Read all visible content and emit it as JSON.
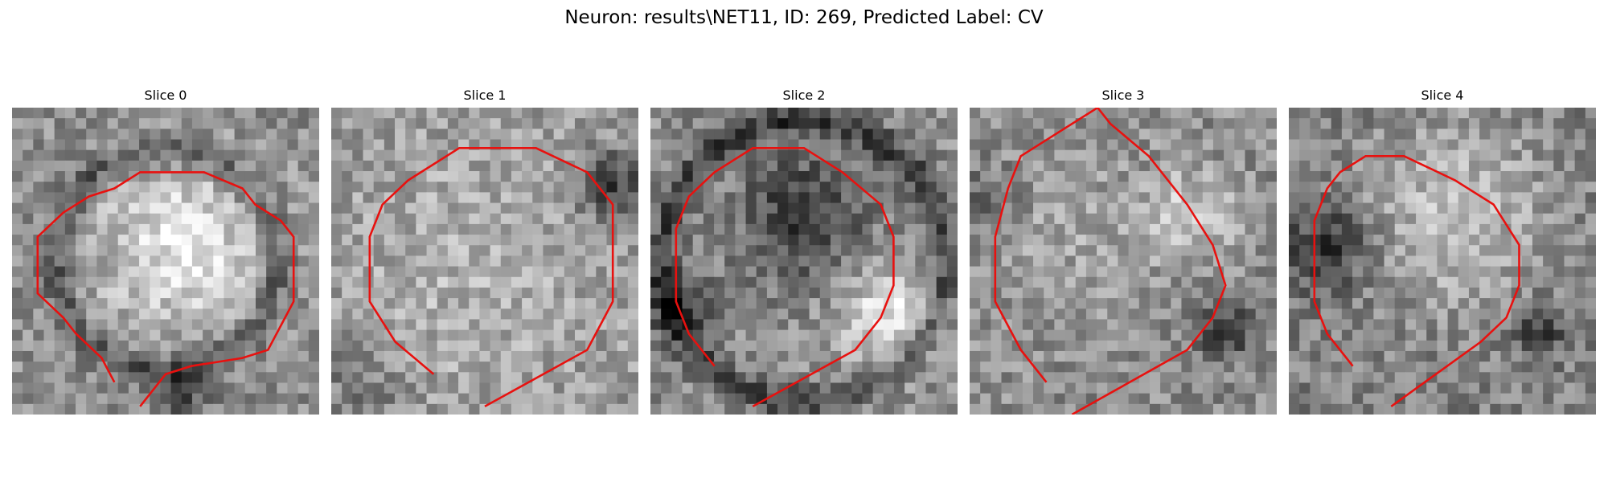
{
  "figure": {
    "title": "Neuron: results\\NET11, ID: 269, Predicted Label: CV",
    "contour_color": "#e8110f"
  },
  "panels": [
    {
      "title": "Slice 0",
      "seed": 11,
      "pattern": "ring_bright_center"
    },
    {
      "title": "Slice 1",
      "seed": 23,
      "pattern": "noisy_bright"
    },
    {
      "title": "Slice 2",
      "seed": 37,
      "pattern": "dark_blob_bright_lower_right"
    },
    {
      "title": "Slice 3",
      "seed": 51,
      "pattern": "bright_center_dark_lower_right"
    },
    {
      "title": "Slice 4",
      "seed": 67,
      "pattern": "bright_upper_dark_left"
    }
  ]
}
